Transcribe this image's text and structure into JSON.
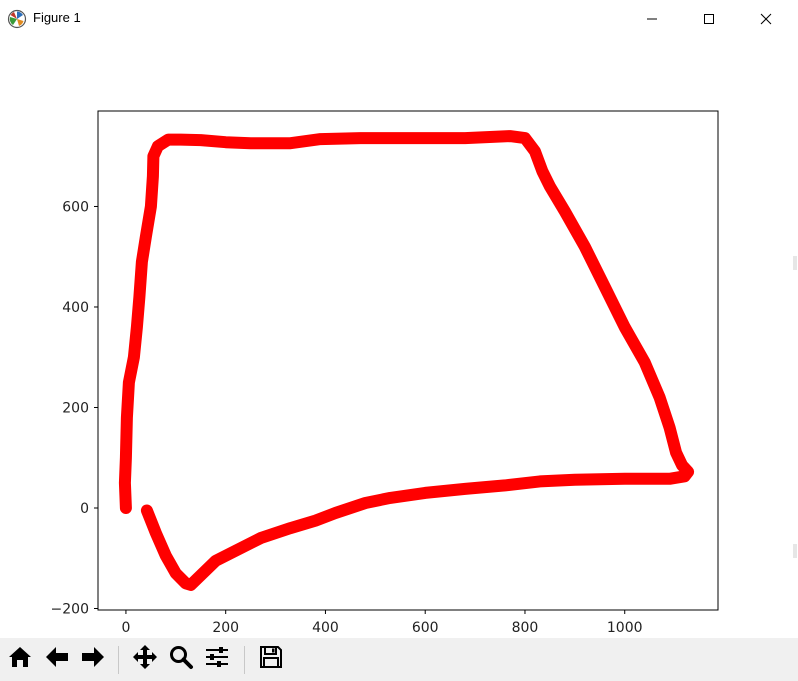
{
  "window": {
    "title": "Figure 1",
    "icons": {
      "app": "matplotlib-logo-icon",
      "minimize": "minimize-icon",
      "maximize": "maximize-icon",
      "close": "close-icon"
    }
  },
  "toolbar": {
    "buttons": [
      {
        "icon": "home-icon"
      },
      {
        "icon": "back-arrow-icon"
      },
      {
        "icon": "forward-arrow-icon"
      },
      {
        "icon": "pan-move-icon"
      },
      {
        "icon": "zoom-magnifier-icon"
      },
      {
        "icon": "configure-subplots-icon"
      },
      {
        "icon": "save-disk-icon"
      }
    ]
  },
  "colors": {
    "line": "#ff0000",
    "axes": "#000000",
    "background": "#ffffff",
    "toolbar": "#f0f0f0"
  },
  "chart_data": {
    "type": "line",
    "title": "",
    "xlabel": "",
    "ylabel": "",
    "xlim": [
      -56,
      1187
    ],
    "ylim": [
      -203,
      790
    ],
    "xticks": [
      0,
      200,
      400,
      600,
      800,
      1000
    ],
    "yticks": [
      -200,
      0,
      200,
      400,
      600
    ],
    "xtick_labels": [
      "0",
      "200",
      "400",
      "600",
      "800",
      "1000"
    ],
    "ytick_labels": [
      "−200",
      "0",
      "200",
      "400",
      "600"
    ],
    "grid": false,
    "series": [
      {
        "color": "#ff0000",
        "points": [
          [
            0,
            0
          ],
          [
            -2,
            50
          ],
          [
            0,
            100
          ],
          [
            2,
            180
          ],
          [
            6,
            250
          ],
          [
            16,
            300
          ],
          [
            22,
            360
          ],
          [
            27,
            420
          ],
          [
            32,
            490
          ],
          [
            40,
            540
          ],
          [
            50,
            600
          ],
          [
            54,
            660
          ],
          [
            55,
            700
          ],
          [
            64,
            720
          ],
          [
            85,
            733
          ],
          [
            110,
            733
          ],
          [
            150,
            732
          ],
          [
            200,
            728
          ],
          [
            250,
            726
          ],
          [
            330,
            726
          ],
          [
            390,
            734
          ],
          [
            470,
            736
          ],
          [
            560,
            736
          ],
          [
            680,
            736
          ],
          [
            770,
            740
          ],
          [
            800,
            736
          ],
          [
            820,
            710
          ],
          [
            835,
            670
          ],
          [
            850,
            640
          ],
          [
            880,
            590
          ],
          [
            920,
            520
          ],
          [
            960,
            440
          ],
          [
            1000,
            360
          ],
          [
            1040,
            290
          ],
          [
            1070,
            220
          ],
          [
            1090,
            160
          ],
          [
            1103,
            110
          ],
          [
            1115,
            85
          ],
          [
            1127,
            72
          ],
          [
            1120,
            63
          ],
          [
            1090,
            58
          ],
          [
            1000,
            58
          ],
          [
            900,
            56
          ],
          [
            830,
            53
          ],
          [
            760,
            45
          ],
          [
            680,
            38
          ],
          [
            600,
            30
          ],
          [
            530,
            20
          ],
          [
            480,
            10
          ],
          [
            420,
            -10
          ],
          [
            380,
            -25
          ],
          [
            330,
            -40
          ],
          [
            270,
            -60
          ],
          [
            220,
            -85
          ],
          [
            180,
            -105
          ],
          [
            130,
            -153
          ],
          [
            120,
            -150
          ],
          [
            100,
            -130
          ],
          [
            80,
            -95
          ],
          [
            60,
            -50
          ],
          [
            42,
            -5
          ]
        ]
      }
    ]
  }
}
